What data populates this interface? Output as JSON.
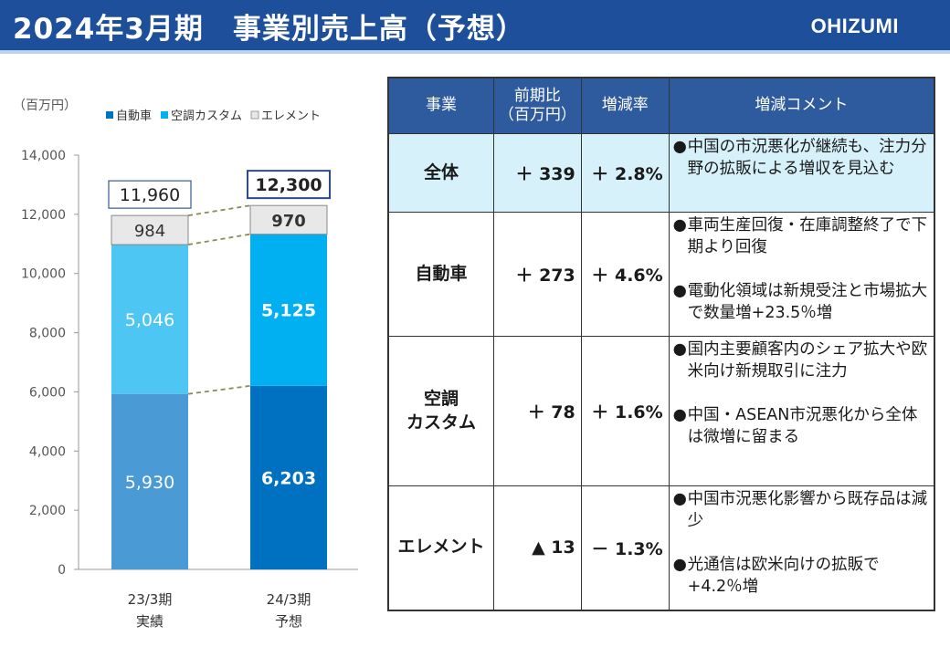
{
  "header": {
    "title": "2024年3月期　事業別売上高（予想）",
    "logo": "OHIZUMI"
  },
  "chart_data": {
    "type": "bar",
    "stacked": true,
    "unit_label": "（百万円）",
    "categories": [
      "23/3期\n実績",
      "24/3期\n予想"
    ],
    "series": [
      {
        "name": "自動車",
        "values": [
          5930,
          6203
        ],
        "colors": [
          "#4a9ad6",
          "#0070c0"
        ]
      },
      {
        "name": "空調カスタム",
        "values": [
          5046,
          5125
        ],
        "colors": [
          "#4dc6f4",
          "#00b0f0"
        ]
      },
      {
        "name": "エレメント",
        "values": [
          984,
          970
        ],
        "colors": [
          "#e8e8e8",
          "#e8e8e8"
        ]
      }
    ],
    "legend_colors": [
      "#0070c0",
      "#00b0f0",
      "#e8e8e8"
    ],
    "totals": [
      11960,
      12300
    ],
    "total_labels": [
      "11,960",
      "12,300"
    ],
    "value_labels": [
      [
        "5,930",
        "5,046",
        "984"
      ],
      [
        "6,203",
        "5,125",
        "970"
      ]
    ],
    "bold_labels": [
      false,
      true
    ],
    "ylim": [
      0,
      14000
    ],
    "yticks": [
      0,
      2000,
      4000,
      6000,
      8000,
      10000,
      12000,
      14000
    ],
    "ytick_labels": [
      "0",
      "2,000",
      "4,000",
      "6,000",
      "8,000",
      "10,000",
      "12,000",
      "14,000"
    ],
    "legend_position": "top",
    "grid": false
  },
  "table": {
    "headers": [
      "事業",
      "前期比\n（百万円）",
      "増減率",
      "増減コメント"
    ],
    "rows": [
      {
        "segment": "全体",
        "diff": "＋ 339",
        "rate": "＋ 2.8%",
        "comments": [
          "中国の市況悪化が継続も、注力分野の拡販による増収を見込む"
        ]
      },
      {
        "segment": "自動車",
        "diff": "＋ 273",
        "rate": "＋ 4.6%",
        "comments": [
          "車両生産回復・在庫調整終了で下期より回復",
          "電動化領域は新規受注と市場拡大で数量増+23.5％増"
        ]
      },
      {
        "segment": "空調\nカスタム",
        "diff": "＋ 78",
        "rate": "＋ 1.6%",
        "comments": [
          "国内主要顧客内のシェア拡大や欧米向け新規取引に注力",
          "中国・ASEAN市況悪化から全体は微増に留まる"
        ]
      },
      {
        "segment": "エレメント",
        "diff": "▲ 13",
        "rate": "－ 1.3%",
        "comments": [
          "中国市況悪化影響から既存品は減少",
          "光通信は欧米向けの拡販で+4.2％増"
        ]
      }
    ]
  }
}
